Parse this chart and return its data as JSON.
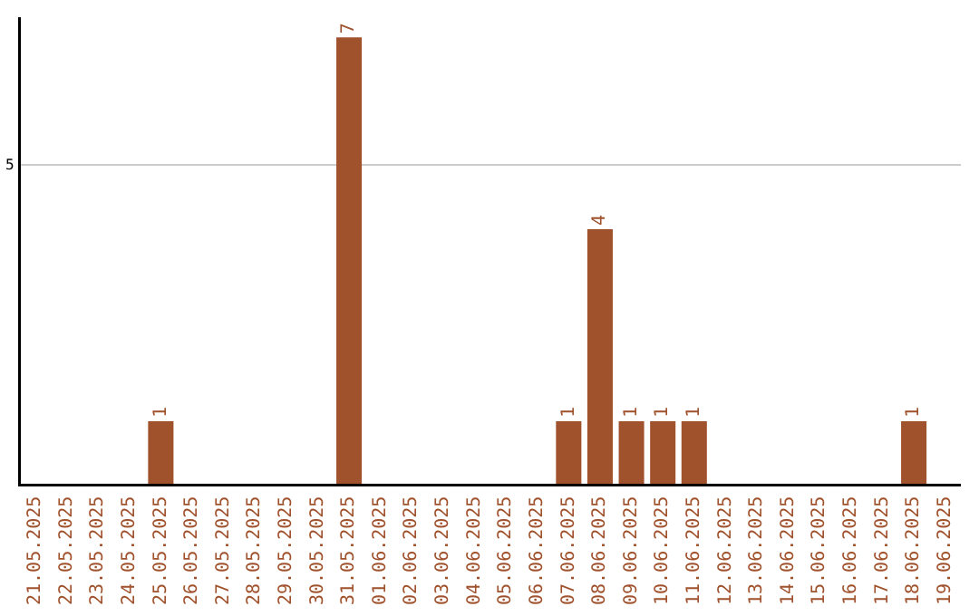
{
  "chart_data": {
    "type": "bar",
    "categories": [
      "21.05.2025",
      "22.05.2025",
      "23.05.2025",
      "24.05.2025",
      "25.05.2025",
      "26.05.2025",
      "27.05.2025",
      "28.05.2025",
      "29.05.2025",
      "30.05.2025",
      "31.05.2025",
      "01.06.2025",
      "02.06.2025",
      "03.06.2025",
      "04.06.2025",
      "05.06.2025",
      "06.06.2025",
      "07.06.2025",
      "08.06.2025",
      "09.06.2025",
      "10.06.2025",
      "11.06.2025",
      "12.06.2025",
      "13.06.2025",
      "14.06.2025",
      "15.06.2025",
      "16.06.2025",
      "17.06.2025",
      "18.06.2025",
      "19.06.2025"
    ],
    "values": [
      0,
      0,
      0,
      0,
      1,
      0,
      0,
      0,
      0,
      0,
      7,
      0,
      0,
      0,
      0,
      0,
      0,
      1,
      4,
      1,
      1,
      1,
      0,
      0,
      0,
      0,
      0,
      0,
      1,
      0
    ],
    "color": "#a0522d",
    "ylim": [
      0,
      7.3
    ],
    "yticks": [
      5
    ],
    "value_labels": [
      null,
      null,
      null,
      null,
      "1",
      null,
      null,
      null,
      null,
      null,
      "7",
      null,
      null,
      null,
      null,
      null,
      null,
      "1",
      "4",
      "1",
      "1",
      "1",
      null,
      null,
      null,
      null,
      null,
      null,
      "1",
      null
    ],
    "grid": "y",
    "legend": false
  }
}
